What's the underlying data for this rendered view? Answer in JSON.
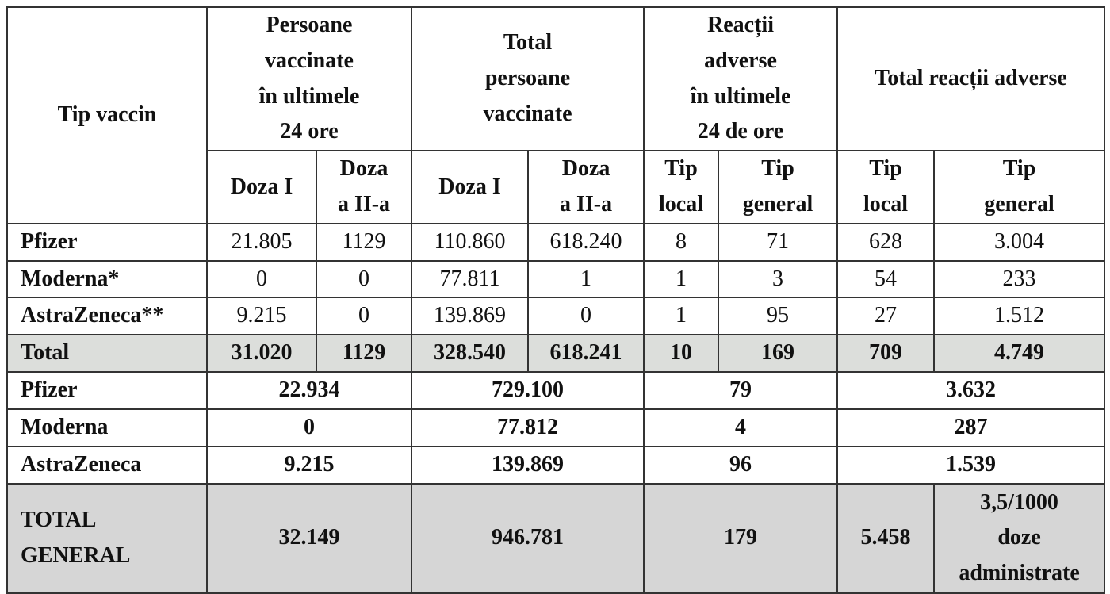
{
  "header": {
    "first": "Tip vaccin",
    "groups": [
      [
        "Persoane",
        "vaccinate",
        "în ultimele",
        "24 ore"
      ],
      [
        "Total",
        "persoane",
        "vaccinate"
      ],
      [
        "Reacții",
        "adverse",
        "în ultimele",
        "24 de ore"
      ],
      [
        "Total reacții adverse"
      ]
    ],
    "sub": [
      [
        "Doza I"
      ],
      [
        "Doza",
        "a II-a"
      ],
      [
        "Doza I"
      ],
      [
        "Doza",
        "a II-a"
      ],
      [
        "Tip",
        "local"
      ],
      [
        "Tip",
        "general"
      ],
      [
        "Tip",
        "local"
      ],
      [
        "Tip",
        "general"
      ]
    ]
  },
  "rows": [
    [
      "Pfizer",
      "21.805",
      "1129",
      "110.860",
      "618.240",
      "8",
      "71",
      "628",
      "3.004"
    ],
    [
      "Moderna*",
      "0",
      "0",
      "77.811",
      "1",
      "1",
      "3",
      "54",
      "233"
    ],
    [
      "AstraZeneca**",
      "9.215",
      "0",
      "139.869",
      "0",
      "1",
      "95",
      "27",
      "1.512"
    ]
  ],
  "total": [
    "Total",
    "31.020",
    "1129",
    "328.540",
    "618.241",
    "10",
    "169",
    "709",
    "4.749"
  ],
  "summary": [
    [
      "Pfizer",
      "22.934",
      "729.100",
      "79",
      "3.632"
    ],
    [
      "Moderna",
      "0",
      "77.812",
      "4",
      "287"
    ],
    [
      "AstraZeneca",
      "9.215",
      "139.869",
      "96",
      "1.539"
    ]
  ],
  "total_general": [
    [
      "TOTAL",
      "GENERAL"
    ],
    "32.149",
    "946.781",
    "179",
    "5.458",
    [
      "3,5/1000",
      "doze",
      "administrate"
    ]
  ]
}
